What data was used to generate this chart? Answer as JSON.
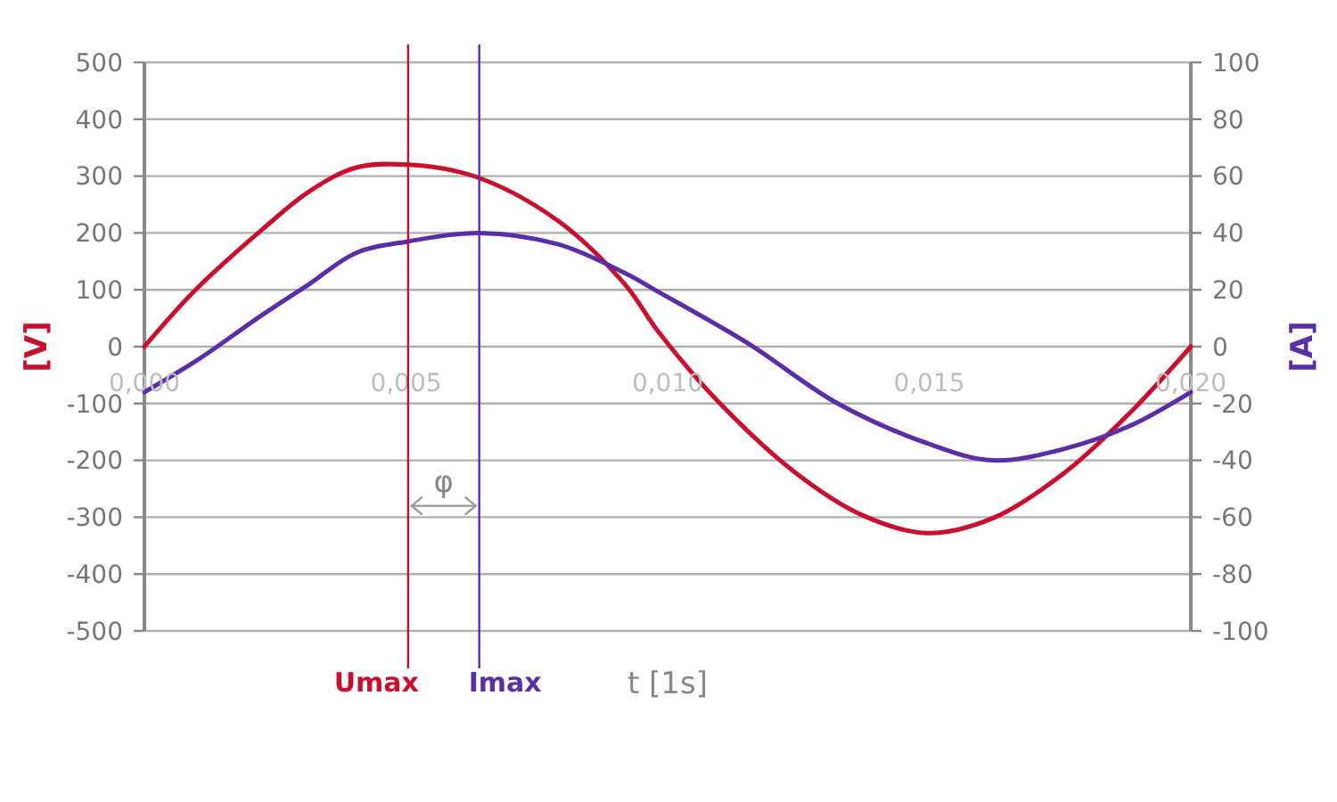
{
  "chart_data": {
    "type": "line",
    "xlabel": "t [1s]",
    "ylabel": "[V]",
    "y2label": "[A]",
    "xlim": [
      0,
      0.02
    ],
    "xticks": [
      {
        "value": 0,
        "label": "0,000"
      },
      {
        "value": 0.005,
        "label": "0,005"
      },
      {
        "value": 0.01,
        "label": "0,010"
      },
      {
        "value": 0.015,
        "label": "0,015"
      },
      {
        "value": 0.02,
        "label": "0,020"
      }
    ],
    "ylim": [
      -500,
      500
    ],
    "yticks": [
      -500,
      -400,
      -300,
      -200,
      -100,
      0,
      100,
      200,
      300,
      400,
      500
    ],
    "y2lim": [
      -100,
      100
    ],
    "y2ticks": [
      -100,
      -80,
      -60,
      -40,
      -20,
      0,
      20,
      40,
      60,
      80,
      100
    ],
    "grid": "y",
    "line_style": "solid",
    "marker": "none",
    "series": [
      {
        "color": "#c8102e",
        "x": [
          0,
          0.00099,
          0.00224,
          0.00315,
          0.00405,
          0.00504,
          0.00633,
          0.00791,
          0.00917,
          0.00985,
          0.01098,
          0.01246,
          0.01371,
          0.01496,
          0.01621,
          0.01757,
          0.01882,
          0.02
        ],
        "values": [
          0,
          101,
          205,
          273,
          315,
          320,
          299,
          221,
          111,
          23,
          -98,
          -223,
          -296,
          -328,
          -302,
          -223,
          -118,
          0
        ]
      },
      {
        "color": "#5a2ea6",
        "axis": "y2",
        "x": [
          0,
          0.00099,
          0.00224,
          0.00315,
          0.00405,
          0.00504,
          0.0064,
          0.00791,
          0.00917,
          0.00985,
          0.01155,
          0.01325,
          0.01496,
          0.01621,
          0.01757,
          0.01882,
          0.02
        ],
        "values": [
          -16,
          -5,
          11,
          22,
          33,
          37,
          40,
          36,
          26,
          19,
          1,
          -20,
          -34,
          -40,
          -36,
          -28,
          -16
        ]
      }
    ],
    "ref_lines": [
      {
        "axis": "x",
        "value": 0.00504,
        "label": "Umax",
        "color": "#c8102e"
      },
      {
        "axis": "x",
        "value": 0.0064,
        "label": "Imax",
        "color": "#5a2ea6"
      }
    ],
    "annotations": [
      "φ"
    ]
  }
}
